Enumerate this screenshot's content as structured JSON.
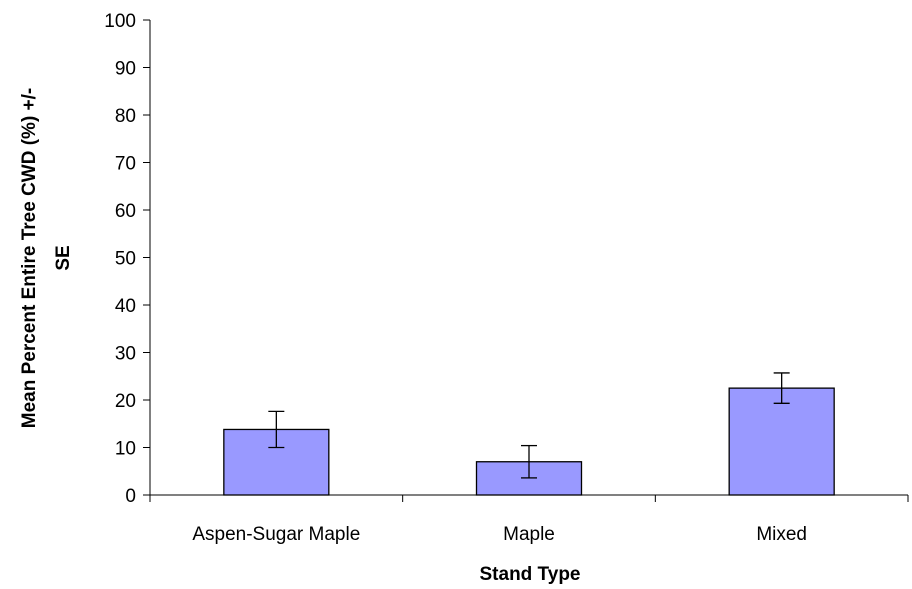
{
  "chart_data": {
    "type": "bar",
    "categories": [
      "Aspen-Sugar Maple",
      "Maple",
      "Mixed"
    ],
    "values": [
      13.8,
      7.0,
      22.5
    ],
    "error": [
      3.8,
      3.4,
      3.2
    ],
    "xlabel": "Stand Type",
    "ylabel_lines": [
      "Mean Percent Entire Tree CWD (%) +/-",
      "SE"
    ],
    "ylim": [
      0,
      100
    ],
    "yticks": [
      0,
      10,
      20,
      30,
      40,
      50,
      60,
      70,
      80,
      90,
      100
    ],
    "grid": false,
    "bar_color": "#9999ff",
    "bar_edge_color": "#000000"
  }
}
